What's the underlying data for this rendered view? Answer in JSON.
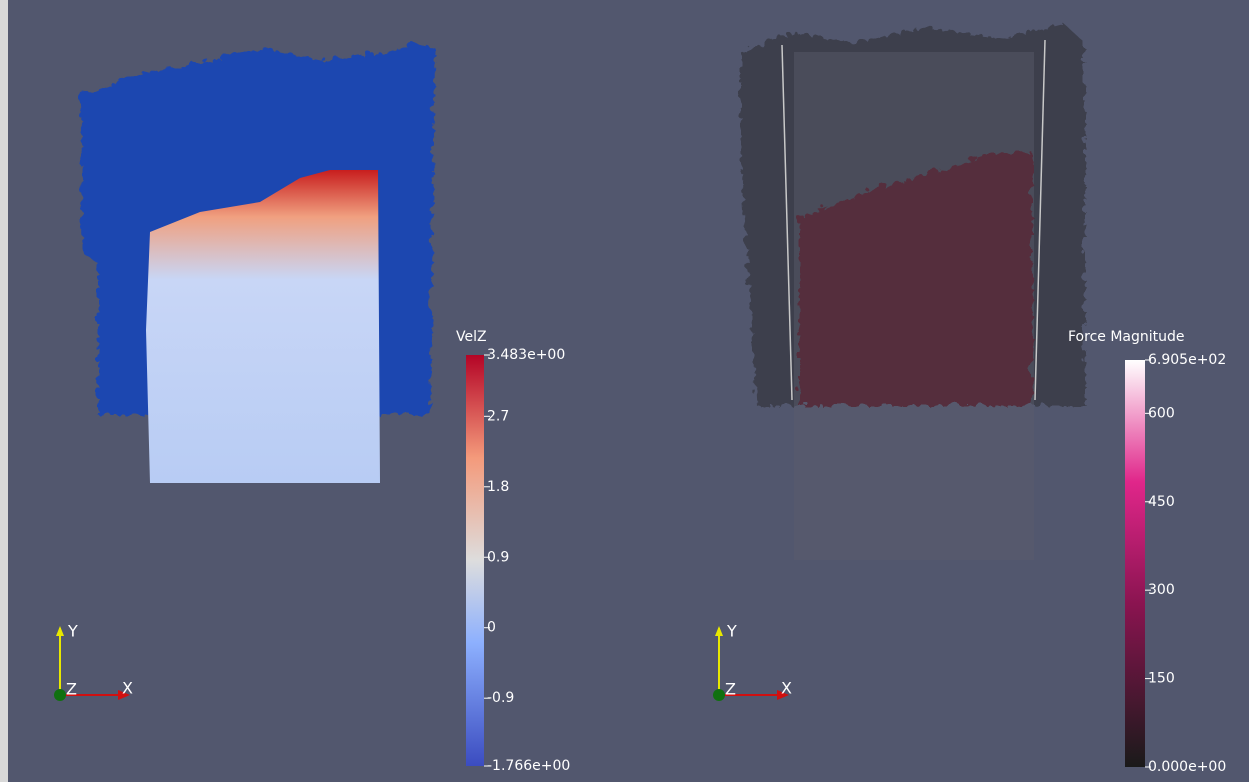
{
  "views": [
    {
      "colorbar": {
        "title": "VelZ",
        "range": [
          -1.766,
          3.483
        ],
        "ticks": [
          {
            "value": 3.483,
            "label": "3.483e+00"
          },
          2.7,
          1.8,
          0.9,
          0,
          -0.9,
          {
            "value": -1.766,
            "label": "-1.766e+00"
          }
        ]
      },
      "axes": {
        "x": "X",
        "y": "Y",
        "z": "Z"
      }
    },
    {
      "colorbar": {
        "title": "Force Magnitude",
        "range": [
          0,
          690.5
        ],
        "ticks": [
          {
            "value": 690.5,
            "label": "6.905e+02"
          },
          600,
          450,
          300,
          150,
          {
            "value": 0,
            "label": "0.000e+00"
          }
        ]
      },
      "axes": {
        "x": "X",
        "y": "Y",
        "z": "Z"
      }
    }
  ]
}
